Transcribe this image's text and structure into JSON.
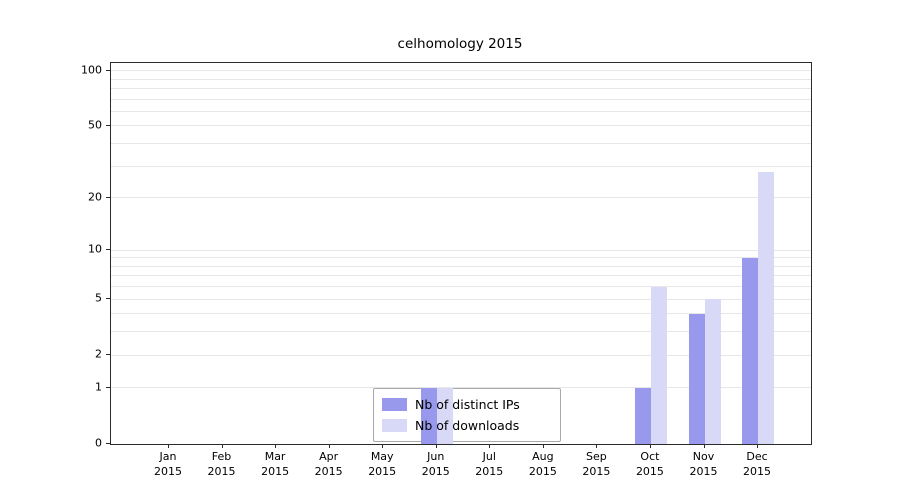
{
  "title": "celhomology 2015",
  "chart_data": {
    "type": "bar",
    "title": "celhomology 2015",
    "yscale": "log1p",
    "ylim": [
      0,
      110
    ],
    "y_ticks": [
      0,
      1,
      2,
      5,
      10,
      20,
      50,
      100
    ],
    "gridlines": [
      1,
      2,
      3,
      4,
      5,
      6,
      7,
      8,
      9,
      10,
      20,
      30,
      40,
      50,
      60,
      70,
      80,
      90,
      100
    ],
    "x_tick_labels": [
      [
        "Jan",
        "2015"
      ],
      [
        "Feb",
        "2015"
      ],
      [
        "Mar",
        "2015"
      ],
      [
        "Apr",
        "2015"
      ],
      [
        "May",
        "2015"
      ],
      [
        "Jun",
        "2015"
      ],
      [
        "Jul",
        "2015"
      ],
      [
        "Aug",
        "2015"
      ],
      [
        "Sep",
        "2015"
      ],
      [
        "Oct",
        "2015"
      ],
      [
        "Nov",
        "2015"
      ],
      [
        "Dec",
        "2015"
      ]
    ],
    "series": [
      {
        "name": "Nb of distinct IPs",
        "color": "#9898ec",
        "values": [
          0,
          0,
          0,
          0,
          0,
          1,
          0,
          0,
          0,
          1,
          4,
          9
        ]
      },
      {
        "name": "Nb of downloads",
        "color": "#d8d8f7",
        "values": [
          0,
          0,
          0,
          0,
          0,
          1,
          0,
          0,
          0,
          6,
          5,
          28
        ]
      }
    ],
    "legend": {
      "entries": [
        "Nb of distinct IPs",
        "Nb of downloads"
      ],
      "position": "lower center"
    }
  }
}
